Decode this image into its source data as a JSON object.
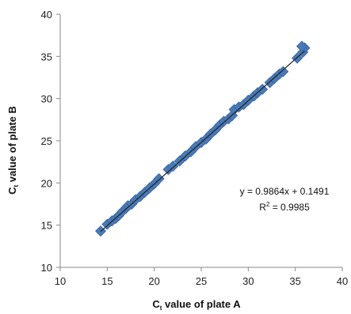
{
  "chart_data": {
    "type": "scatter",
    "xlabel_main": "C",
    "xlabel_sub": "t",
    "xlabel_rest": " value of plate A",
    "ylabel_main": "C",
    "ylabel_sub": "t",
    "ylabel_rest": " value of plate B",
    "xlim": [
      10,
      40
    ],
    "ylim": [
      10,
      40
    ],
    "xticks": [
      10,
      15,
      20,
      25,
      30,
      35,
      40
    ],
    "yticks": [
      10,
      15,
      20,
      25,
      30,
      35,
      40
    ],
    "grid": false,
    "marker_color": "#4a7ab5",
    "trendline": {
      "slope": 0.9864,
      "intercept": 0.1491,
      "color": "#222222"
    },
    "annotations": {
      "equation": "y = 0.9864x + 0.1491",
      "r_squared_prefix": "R",
      "r_squared_sup": "2",
      "r_squared_rest": " = 0.9985"
    },
    "points": [
      [
        14.3,
        14.3
      ],
      [
        15.0,
        15.1
      ],
      [
        15.5,
        15.5
      ],
      [
        15.9,
        15.8
      ],
      [
        16.2,
        16.1
      ],
      [
        16.6,
        16.6
      ],
      [
        17.0,
        17.0
      ],
      [
        17.2,
        17.3
      ],
      [
        17.6,
        17.5
      ],
      [
        18.0,
        18.0
      ],
      [
        18.5,
        18.4
      ],
      [
        19.0,
        18.9
      ],
      [
        19.5,
        19.4
      ],
      [
        20.0,
        19.9
      ],
      [
        20.5,
        20.5
      ],
      [
        21.5,
        21.6
      ],
      [
        22.0,
        22.0
      ],
      [
        22.7,
        22.6
      ],
      [
        23.3,
        23.2
      ],
      [
        23.9,
        23.7
      ],
      [
        24.4,
        24.3
      ],
      [
        25.0,
        24.8
      ],
      [
        25.5,
        25.2
      ],
      [
        26.0,
        25.8
      ],
      [
        26.5,
        26.3
      ],
      [
        27.0,
        26.9
      ],
      [
        27.4,
        27.3
      ],
      [
        27.9,
        27.6
      ],
      [
        28.3,
        28.0
      ],
      [
        28.5,
        28.7
      ],
      [
        29.0,
        29.0
      ],
      [
        29.5,
        29.3
      ],
      [
        30.0,
        29.8
      ],
      [
        30.6,
        30.3
      ],
      [
        31.0,
        30.7
      ],
      [
        31.5,
        31.1
      ],
      [
        32.3,
        31.9
      ],
      [
        32.8,
        32.4
      ],
      [
        33.3,
        32.9
      ],
      [
        33.7,
        33.2
      ],
      [
        35.2,
        34.8
      ],
      [
        35.8,
        35.5
      ],
      [
        36.0,
        36.0
      ],
      [
        35.7,
        36.2
      ]
    ]
  }
}
